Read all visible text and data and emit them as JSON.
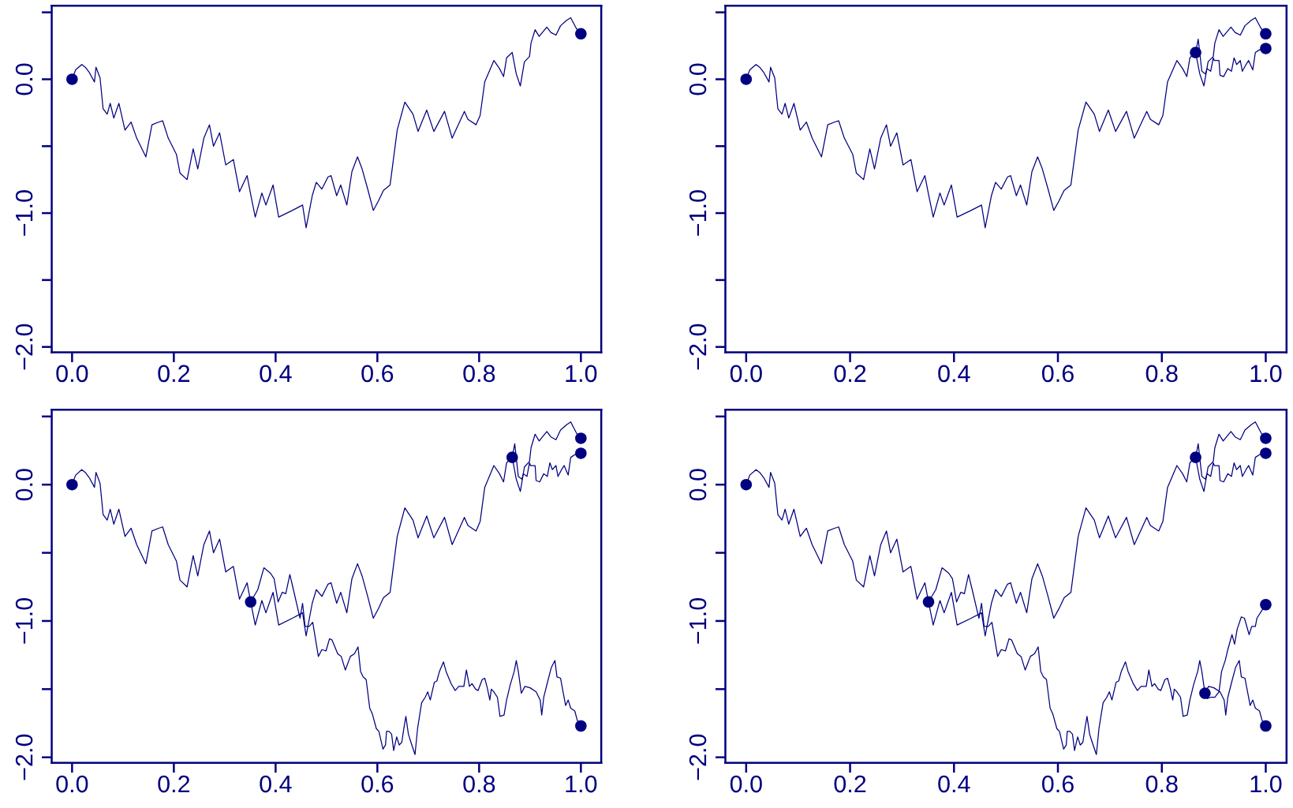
{
  "chart_data": [
    {
      "type": "line",
      "xlim": [
        -0.04,
        1.04
      ],
      "ylim": [
        -2.04,
        0.55
      ],
      "xticks": [
        {
          "value": 0.0,
          "label": "0.0"
        },
        {
          "value": 0.2,
          "label": "0.2"
        },
        {
          "value": 0.4,
          "label": "0.4"
        },
        {
          "value": 0.6,
          "label": "0.6"
        },
        {
          "value": 0.8,
          "label": "0.8"
        },
        {
          "value": 1.0,
          "label": "1.0"
        }
      ],
      "yticks": [
        {
          "value": -2.0,
          "label": "−2.0"
        },
        {
          "value": -1.5,
          "label": null
        },
        {
          "value": -1.0,
          "label": "−1.0"
        },
        {
          "value": -0.5,
          "label": null
        },
        {
          "value": 0.0,
          "label": "0.0"
        },
        {
          "value": 0.5,
          "label": null
        }
      ],
      "series": [
        {
          "type": "line",
          "color": "#000080",
          "x": [
            0,
            0.007,
            0.019,
            0.026,
            0.034,
            0.044,
            0.047,
            0.055,
            0.061,
            0.069,
            0.075,
            0.082,
            0.092,
            0.104,
            0.116,
            0.127,
            0.145,
            0.157,
            0.17,
            0.178,
            0.189,
            0.205,
            0.212,
            0.226,
            0.238,
            0.247,
            0.259,
            0.27,
            0.278,
            0.29,
            0.302,
            0.317,
            0.329,
            0.344,
            0.351,
            0.36,
            0.373,
            0.381,
            0.395,
            0.406,
            0.433,
            0.453,
            0.46,
            0.472,
            0.48,
            0.491,
            0.503,
            0.509,
            0.52,
            0.528,
            0.54,
            0.55,
            0.561,
            0.57,
            0.581,
            0.592,
            0.602,
            0.612,
            0.625,
            0.639,
            0.654,
            0.67,
            0.68,
            0.697,
            0.711,
            0.732,
            0.747,
            0.771,
            0.778,
            0.794,
            0.802,
            0.811,
            0.829,
            0.84,
            0.848,
            0.854,
            0.865,
            0.873,
            0.881,
            0.889,
            0.899,
            0.902,
            0.91,
            0.918,
            0.933,
            0.941,
            0.951,
            0.96,
            0.972,
            0.98,
            0.991,
            1.0
          ],
          "values": [
            0,
            0.07,
            0.11,
            0.09,
            0.05,
            -0.02,
            0.09,
            0.01,
            -0.22,
            -0.26,
            -0.18,
            -0.29,
            -0.18,
            -0.38,
            -0.32,
            -0.44,
            -0.58,
            -0.34,
            -0.32,
            -0.31,
            -0.44,
            -0.56,
            -0.7,
            -0.75,
            -0.52,
            -0.67,
            -0.44,
            -0.34,
            -0.5,
            -0.4,
            -0.64,
            -0.6,
            -0.84,
            -0.72,
            -0.86,
            -1.03,
            -0.85,
            -0.94,
            -0.79,
            -1.03,
            -0.98,
            -0.94,
            -1.11,
            -0.87,
            -0.77,
            -0.82,
            -0.73,
            -0.72,
            -0.87,
            -0.79,
            -0.94,
            -0.69,
            -0.58,
            -0.67,
            -0.82,
            -0.98,
            -0.91,
            -0.83,
            -0.79,
            -0.38,
            -0.17,
            -0.26,
            -0.39,
            -0.23,
            -0.39,
            -0.24,
            -0.44,
            -0.24,
            -0.3,
            -0.34,
            -0.27,
            -0.02,
            0.14,
            0.08,
            0.02,
            0.16,
            0.2,
            0.04,
            -0.05,
            0.13,
            0.17,
            0.27,
            0.37,
            0.32,
            0.39,
            0.35,
            0.33,
            0.4,
            0.44,
            0.46,
            0.38,
            0.34
          ]
        },
        {
          "type": "scatter",
          "color": "#000080",
          "marker": "circle",
          "x": [
            0,
            1.0
          ],
          "values": [
            0,
            0.34
          ]
        }
      ]
    },
    {
      "type": "line",
      "xlim": [
        -0.04,
        1.04
      ],
      "ylim": [
        -2.04,
        0.55
      ],
      "xticks": [
        {
          "value": 0.0,
          "label": "0.0"
        },
        {
          "value": 0.2,
          "label": "0.2"
        },
        {
          "value": 0.4,
          "label": "0.4"
        },
        {
          "value": 0.6,
          "label": "0.6"
        },
        {
          "value": 0.8,
          "label": "0.8"
        },
        {
          "value": 1.0,
          "label": "1.0"
        }
      ],
      "yticks": [
        {
          "value": -2.0,
          "label": "−2.0"
        },
        {
          "value": -1.5,
          "label": null
        },
        {
          "value": -1.0,
          "label": "−1.0"
        },
        {
          "value": -0.5,
          "label": null
        },
        {
          "value": 0.0,
          "label": "0.0"
        },
        {
          "value": 0.5,
          "label": null
        }
      ],
      "series": [
        {
          "type": "line",
          "color": "#000080",
          "x": [
            0,
            0.007,
            0.019,
            0.026,
            0.034,
            0.044,
            0.047,
            0.055,
            0.061,
            0.069,
            0.075,
            0.082,
            0.092,
            0.104,
            0.116,
            0.127,
            0.145,
            0.157,
            0.17,
            0.178,
            0.189,
            0.205,
            0.212,
            0.226,
            0.238,
            0.247,
            0.259,
            0.27,
            0.278,
            0.29,
            0.302,
            0.317,
            0.329,
            0.344,
            0.351,
            0.36,
            0.373,
            0.381,
            0.395,
            0.406,
            0.433,
            0.453,
            0.46,
            0.472,
            0.48,
            0.491,
            0.503,
            0.509,
            0.52,
            0.528,
            0.54,
            0.55,
            0.561,
            0.57,
            0.581,
            0.592,
            0.602,
            0.612,
            0.625,
            0.639,
            0.654,
            0.67,
            0.68,
            0.697,
            0.711,
            0.732,
            0.747,
            0.771,
            0.778,
            0.794,
            0.802,
            0.811,
            0.829,
            0.84,
            0.848,
            0.854,
            0.865,
            0.873,
            0.881,
            0.889,
            0.899,
            0.902,
            0.91,
            0.918,
            0.933,
            0.941,
            0.951,
            0.96,
            0.972,
            0.98,
            0.991,
            1.0
          ],
          "values": [
            0,
            0.07,
            0.11,
            0.09,
            0.05,
            -0.02,
            0.09,
            0.01,
            -0.22,
            -0.26,
            -0.18,
            -0.29,
            -0.18,
            -0.38,
            -0.32,
            -0.44,
            -0.58,
            -0.34,
            -0.32,
            -0.31,
            -0.44,
            -0.56,
            -0.7,
            -0.75,
            -0.52,
            -0.67,
            -0.44,
            -0.34,
            -0.5,
            -0.4,
            -0.64,
            -0.6,
            -0.84,
            -0.72,
            -0.86,
            -1.03,
            -0.85,
            -0.94,
            -0.79,
            -1.03,
            -0.98,
            -0.94,
            -1.11,
            -0.87,
            -0.77,
            -0.82,
            -0.73,
            -0.72,
            -0.87,
            -0.79,
            -0.94,
            -0.69,
            -0.58,
            -0.67,
            -0.82,
            -0.98,
            -0.91,
            -0.83,
            -0.79,
            -0.38,
            -0.17,
            -0.26,
            -0.39,
            -0.23,
            -0.39,
            -0.24,
            -0.44,
            -0.24,
            -0.3,
            -0.34,
            -0.27,
            -0.02,
            0.14,
            0.08,
            0.02,
            0.16,
            0.2,
            0.04,
            -0.05,
            0.13,
            0.17,
            0.27,
            0.37,
            0.32,
            0.39,
            0.35,
            0.33,
            0.4,
            0.44,
            0.46,
            0.38,
            0.34
          ]
        },
        {
          "type": "line",
          "color": "#000080",
          "x": [
            0.865,
            0.87,
            0.877,
            0.884,
            0.887,
            0.894,
            0.899,
            0.901,
            0.91,
            0.912,
            0.919,
            0.927,
            0.934,
            0.939,
            0.944,
            0.951,
            0.955,
            0.962,
            0.967,
            0.975,
            0.98,
            0.988,
            1.0
          ],
          "values": [
            0.2,
            0.3,
            0.06,
            0.04,
            0.08,
            0.06,
            0.16,
            0.14,
            0.14,
            0.03,
            0.02,
            0.08,
            0.06,
            0.16,
            0.11,
            0.14,
            0.06,
            0.11,
            0.14,
            0.07,
            0.2,
            0.22,
            0.23
          ]
        },
        {
          "type": "scatter",
          "color": "#000080",
          "marker": "circle",
          "x": [
            0,
            0.865,
            1.0,
            1.0
          ],
          "values": [
            0,
            0.2,
            0.34,
            0.23
          ]
        }
      ]
    },
    {
      "type": "line",
      "xlim": [
        -0.04,
        1.04
      ],
      "ylim": [
        -2.04,
        0.55
      ],
      "xticks": [
        {
          "value": 0.0,
          "label": "0.0"
        },
        {
          "value": 0.2,
          "label": "0.2"
        },
        {
          "value": 0.4,
          "label": "0.4"
        },
        {
          "value": 0.6,
          "label": "0.6"
        },
        {
          "value": 0.8,
          "label": "0.8"
        },
        {
          "value": 1.0,
          "label": "1.0"
        }
      ],
      "yticks": [
        {
          "value": -2.0,
          "label": "−2.0"
        },
        {
          "value": -1.5,
          "label": null
        },
        {
          "value": -1.0,
          "label": "−1.0"
        },
        {
          "value": -0.5,
          "label": null
        },
        {
          "value": 0.0,
          "label": "0.0"
        },
        {
          "value": 0.5,
          "label": null
        }
      ],
      "series": [
        {
          "type": "line",
          "color": "#000080",
          "x": [
            0,
            0.007,
            0.019,
            0.026,
            0.034,
            0.044,
            0.047,
            0.055,
            0.061,
            0.069,
            0.075,
            0.082,
            0.092,
            0.104,
            0.116,
            0.127,
            0.145,
            0.157,
            0.17,
            0.178,
            0.189,
            0.205,
            0.212,
            0.226,
            0.238,
            0.247,
            0.259,
            0.27,
            0.278,
            0.29,
            0.302,
            0.317,
            0.329,
            0.344,
            0.351,
            0.36,
            0.373,
            0.381,
            0.395,
            0.406,
            0.433,
            0.453,
            0.46,
            0.472,
            0.48,
            0.491,
            0.503,
            0.509,
            0.52,
            0.528,
            0.54,
            0.55,
            0.561,
            0.57,
            0.581,
            0.592,
            0.602,
            0.612,
            0.625,
            0.639,
            0.654,
            0.67,
            0.68,
            0.697,
            0.711,
            0.732,
            0.747,
            0.771,
            0.778,
            0.794,
            0.802,
            0.811,
            0.829,
            0.84,
            0.848,
            0.854,
            0.865,
            0.873,
            0.881,
            0.889,
            0.899,
            0.902,
            0.91,
            0.918,
            0.933,
            0.941,
            0.951,
            0.96,
            0.972,
            0.98,
            0.991,
            1.0
          ],
          "values": [
            0,
            0.07,
            0.11,
            0.09,
            0.05,
            -0.02,
            0.09,
            0.01,
            -0.22,
            -0.26,
            -0.18,
            -0.29,
            -0.18,
            -0.38,
            -0.32,
            -0.44,
            -0.58,
            -0.34,
            -0.32,
            -0.31,
            -0.44,
            -0.56,
            -0.7,
            -0.75,
            -0.52,
            -0.67,
            -0.44,
            -0.34,
            -0.5,
            -0.4,
            -0.64,
            -0.6,
            -0.84,
            -0.72,
            -0.86,
            -1.03,
            -0.85,
            -0.94,
            -0.79,
            -1.03,
            -0.98,
            -0.94,
            -1.11,
            -0.87,
            -0.77,
            -0.82,
            -0.73,
            -0.72,
            -0.87,
            -0.79,
            -0.94,
            -0.69,
            -0.58,
            -0.67,
            -0.82,
            -0.98,
            -0.91,
            -0.83,
            -0.79,
            -0.38,
            -0.17,
            -0.26,
            -0.39,
            -0.23,
            -0.39,
            -0.24,
            -0.44,
            -0.24,
            -0.3,
            -0.34,
            -0.27,
            -0.02,
            0.14,
            0.08,
            0.02,
            0.16,
            0.2,
            0.04,
            -0.05,
            0.13,
            0.17,
            0.27,
            0.37,
            0.32,
            0.39,
            0.35,
            0.33,
            0.4,
            0.44,
            0.46,
            0.38,
            0.34
          ]
        },
        {
          "type": "line",
          "color": "#000080",
          "x": [
            0.865,
            0.87,
            0.877,
            0.884,
            0.887,
            0.894,
            0.899,
            0.901,
            0.91,
            0.912,
            0.919,
            0.927,
            0.934,
            0.939,
            0.944,
            0.951,
            0.955,
            0.962,
            0.967,
            0.975,
            0.98,
            0.988,
            1.0
          ],
          "values": [
            0.2,
            0.3,
            0.06,
            0.04,
            0.08,
            0.06,
            0.16,
            0.14,
            0.14,
            0.03,
            0.02,
            0.08,
            0.06,
            0.16,
            0.11,
            0.14,
            0.06,
            0.11,
            0.14,
            0.07,
            0.2,
            0.22,
            0.23
          ]
        },
        {
          "type": "line",
          "color": "#000080",
          "x": [
            0.351,
            0.365,
            0.377,
            0.39,
            0.397,
            0.405,
            0.413,
            0.42,
            0.428,
            0.435,
            0.443,
            0.448,
            0.453,
            0.458,
            0.466,
            0.473,
            0.484,
            0.491,
            0.499,
            0.506,
            0.511,
            0.522,
            0.529,
            0.537,
            0.547,
            0.555,
            0.562,
            0.567,
            0.572,
            0.578,
            0.585,
            0.59,
            0.598,
            0.603,
            0.611,
            0.616,
            0.618,
            0.623,
            0.628,
            0.632,
            0.638,
            0.643,
            0.648,
            0.652,
            0.656,
            0.661,
            0.666,
            0.674,
            0.679,
            0.687,
            0.694,
            0.699,
            0.704,
            0.712,
            0.717,
            0.722,
            0.73,
            0.735,
            0.745,
            0.753,
            0.76,
            0.77,
            0.775,
            0.781,
            0.786,
            0.793,
            0.798,
            0.806,
            0.811,
            0.816,
            0.821,
            0.824,
            0.829,
            0.836,
            0.841,
            0.849,
            0.854,
            0.861,
            0.869,
            0.873,
            0.877,
            0.883,
            0.89,
            0.9,
            0.912,
            0.92,
            0.923,
            0.927,
            0.935,
            0.942,
            0.949,
            0.953,
            0.96,
            0.965,
            0.97,
            0.975,
            0.98,
            0.988,
            0.993,
            1.0
          ],
          "values": [
            -0.86,
            -0.77,
            -0.61,
            -0.65,
            -0.69,
            -0.86,
            -0.79,
            -0.8,
            -0.66,
            -0.77,
            -0.9,
            -0.98,
            -0.87,
            -1.04,
            -1.04,
            -1.01,
            -1.26,
            -1.21,
            -1.22,
            -1.13,
            -1.14,
            -1.24,
            -1.26,
            -1.36,
            -1.26,
            -1.24,
            -1.19,
            -1.37,
            -1.41,
            -1.43,
            -1.64,
            -1.68,
            -1.79,
            -1.81,
            -1.94,
            -1.91,
            -1.81,
            -1.81,
            -1.83,
            -1.95,
            -1.85,
            -1.91,
            -1.89,
            -1.79,
            -1.7,
            -1.83,
            -1.89,
            -1.98,
            -1.79,
            -1.6,
            -1.56,
            -1.52,
            -1.58,
            -1.45,
            -1.44,
            -1.37,
            -1.3,
            -1.37,
            -1.46,
            -1.51,
            -1.48,
            -1.48,
            -1.36,
            -1.48,
            -1.46,
            -1.5,
            -1.51,
            -1.43,
            -1.42,
            -1.49,
            -1.58,
            -1.5,
            -1.52,
            -1.56,
            -1.7,
            -1.69,
            -1.58,
            -1.47,
            -1.37,
            -1.29,
            -1.37,
            -1.53,
            -1.48,
            -1.49,
            -1.52,
            -1.58,
            -1.69,
            -1.56,
            -1.44,
            -1.34,
            -1.29,
            -1.41,
            -1.42,
            -1.52,
            -1.62,
            -1.58,
            -1.64,
            -1.66,
            -1.73,
            -1.77
          ]
        },
        {
          "type": "scatter",
          "color": "#000080",
          "marker": "circle",
          "x": [
            0,
            0.865,
            1.0,
            1.0,
            0.351,
            1.0
          ],
          "values": [
            0,
            0.2,
            0.34,
            0.23,
            -0.86,
            -1.77
          ]
        }
      ]
    },
    {
      "type": "line",
      "xlim": [
        -0.04,
        1.04
      ],
      "ylim": [
        -2.04,
        0.55
      ],
      "xticks": [
        {
          "value": 0.0,
          "label": "0.0"
        },
        {
          "value": 0.2,
          "label": "0.2"
        },
        {
          "value": 0.4,
          "label": "0.4"
        },
        {
          "value": 0.6,
          "label": "0.6"
        },
        {
          "value": 0.8,
          "label": "0.8"
        },
        {
          "value": 1.0,
          "label": "1.0"
        }
      ],
      "yticks": [
        {
          "value": -2.0,
          "label": "−2.0"
        },
        {
          "value": -1.5,
          "label": null
        },
        {
          "value": -1.0,
          "label": "−1.0"
        },
        {
          "value": -0.5,
          "label": null
        },
        {
          "value": 0.0,
          "label": "0.0"
        },
        {
          "value": 0.5,
          "label": null
        }
      ],
      "series": [
        {
          "type": "line",
          "color": "#000080",
          "x": [
            0,
            0.007,
            0.019,
            0.026,
            0.034,
            0.044,
            0.047,
            0.055,
            0.061,
            0.069,
            0.075,
            0.082,
            0.092,
            0.104,
            0.116,
            0.127,
            0.145,
            0.157,
            0.17,
            0.178,
            0.189,
            0.205,
            0.212,
            0.226,
            0.238,
            0.247,
            0.259,
            0.27,
            0.278,
            0.29,
            0.302,
            0.317,
            0.329,
            0.344,
            0.351,
            0.36,
            0.373,
            0.381,
            0.395,
            0.406,
            0.433,
            0.453,
            0.46,
            0.472,
            0.48,
            0.491,
            0.503,
            0.509,
            0.52,
            0.528,
            0.54,
            0.55,
            0.561,
            0.57,
            0.581,
            0.592,
            0.602,
            0.612,
            0.625,
            0.639,
            0.654,
            0.67,
            0.68,
            0.697,
            0.711,
            0.732,
            0.747,
            0.771,
            0.778,
            0.794,
            0.802,
            0.811,
            0.829,
            0.84,
            0.848,
            0.854,
            0.865,
            0.873,
            0.881,
            0.889,
            0.899,
            0.902,
            0.91,
            0.918,
            0.933,
            0.941,
            0.951,
            0.96,
            0.972,
            0.98,
            0.991,
            1.0
          ],
          "values": [
            0,
            0.07,
            0.11,
            0.09,
            0.05,
            -0.02,
            0.09,
            0.01,
            -0.22,
            -0.26,
            -0.18,
            -0.29,
            -0.18,
            -0.38,
            -0.32,
            -0.44,
            -0.58,
            -0.34,
            -0.32,
            -0.31,
            -0.44,
            -0.56,
            -0.7,
            -0.75,
            -0.52,
            -0.67,
            -0.44,
            -0.34,
            -0.5,
            -0.4,
            -0.64,
            -0.6,
            -0.84,
            -0.72,
            -0.86,
            -1.03,
            -0.85,
            -0.94,
            -0.79,
            -1.03,
            -0.98,
            -0.94,
            -1.11,
            -0.87,
            -0.77,
            -0.82,
            -0.73,
            -0.72,
            -0.87,
            -0.79,
            -0.94,
            -0.69,
            -0.58,
            -0.67,
            -0.82,
            -0.98,
            -0.91,
            -0.83,
            -0.79,
            -0.38,
            -0.17,
            -0.26,
            -0.39,
            -0.23,
            -0.39,
            -0.24,
            -0.44,
            -0.24,
            -0.3,
            -0.34,
            -0.27,
            -0.02,
            0.14,
            0.08,
            0.02,
            0.16,
            0.2,
            0.04,
            -0.05,
            0.13,
            0.17,
            0.27,
            0.37,
            0.32,
            0.39,
            0.35,
            0.33,
            0.4,
            0.44,
            0.46,
            0.38,
            0.34
          ]
        },
        {
          "type": "line",
          "color": "#000080",
          "x": [
            0.865,
            0.87,
            0.877,
            0.884,
            0.887,
            0.894,
            0.899,
            0.901,
            0.91,
            0.912,
            0.919,
            0.927,
            0.934,
            0.939,
            0.944,
            0.951,
            0.955,
            0.962,
            0.967,
            0.975,
            0.98,
            0.988,
            1.0
          ],
          "values": [
            0.2,
            0.3,
            0.06,
            0.04,
            0.08,
            0.06,
            0.16,
            0.14,
            0.14,
            0.03,
            0.02,
            0.08,
            0.06,
            0.16,
            0.11,
            0.14,
            0.06,
            0.11,
            0.14,
            0.07,
            0.2,
            0.22,
            0.23
          ]
        },
        {
          "type": "line",
          "color": "#000080",
          "x": [
            0.351,
            0.365,
            0.377,
            0.39,
            0.397,
            0.405,
            0.413,
            0.42,
            0.428,
            0.435,
            0.443,
            0.448,
            0.453,
            0.458,
            0.466,
            0.473,
            0.484,
            0.491,
            0.499,
            0.506,
            0.511,
            0.522,
            0.529,
            0.537,
            0.547,
            0.555,
            0.562,
            0.567,
            0.572,
            0.578,
            0.585,
            0.59,
            0.598,
            0.603,
            0.611,
            0.616,
            0.618,
            0.623,
            0.628,
            0.632,
            0.638,
            0.643,
            0.648,
            0.652,
            0.656,
            0.661,
            0.666,
            0.674,
            0.679,
            0.687,
            0.694,
            0.699,
            0.704,
            0.712,
            0.717,
            0.722,
            0.73,
            0.735,
            0.745,
            0.753,
            0.76,
            0.77,
            0.775,
            0.781,
            0.786,
            0.793,
            0.798,
            0.806,
            0.811,
            0.816,
            0.821,
            0.824,
            0.829,
            0.836,
            0.841,
            0.849,
            0.854,
            0.861,
            0.869,
            0.873,
            0.877,
            0.883,
            0.89,
            0.9,
            0.912,
            0.92,
            0.923,
            0.927,
            0.935,
            0.942,
            0.949,
            0.953,
            0.96,
            0.965,
            0.97,
            0.975,
            0.98,
            0.988,
            0.993,
            1.0
          ],
          "values": [
            -0.86,
            -0.77,
            -0.61,
            -0.65,
            -0.69,
            -0.86,
            -0.79,
            -0.8,
            -0.66,
            -0.77,
            -0.9,
            -0.98,
            -0.87,
            -1.04,
            -1.04,
            -1.01,
            -1.26,
            -1.21,
            -1.22,
            -1.13,
            -1.14,
            -1.24,
            -1.26,
            -1.36,
            -1.26,
            -1.24,
            -1.19,
            -1.37,
            -1.41,
            -1.43,
            -1.64,
            -1.68,
            -1.79,
            -1.81,
            -1.94,
            -1.91,
            -1.81,
            -1.81,
            -1.83,
            -1.95,
            -1.85,
            -1.91,
            -1.89,
            -1.79,
            -1.7,
            -1.83,
            -1.89,
            -1.98,
            -1.79,
            -1.6,
            -1.56,
            -1.52,
            -1.58,
            -1.45,
            -1.44,
            -1.37,
            -1.3,
            -1.37,
            -1.46,
            -1.51,
            -1.48,
            -1.48,
            -1.36,
            -1.48,
            -1.46,
            -1.5,
            -1.51,
            -1.43,
            -1.42,
            -1.49,
            -1.58,
            -1.5,
            -1.52,
            -1.56,
            -1.7,
            -1.69,
            -1.58,
            -1.47,
            -1.37,
            -1.29,
            -1.37,
            -1.53,
            -1.48,
            -1.49,
            -1.52,
            -1.58,
            -1.69,
            -1.56,
            -1.44,
            -1.34,
            -1.29,
            -1.41,
            -1.42,
            -1.52,
            -1.62,
            -1.58,
            -1.64,
            -1.66,
            -1.73,
            -1.77
          ]
        },
        {
          "type": "line",
          "color": "#000080",
          "x": [
            0.883,
            0.887,
            0.894,
            0.902,
            0.91,
            0.915,
            0.922,
            0.927,
            0.935,
            0.94,
            0.945,
            0.953,
            0.959,
            0.968,
            0.973,
            0.98,
            0.983,
            0.993,
            1.0
          ],
          "values": [
            -1.53,
            -1.57,
            -1.56,
            -1.56,
            -1.52,
            -1.37,
            -1.29,
            -1.21,
            -1.1,
            -1.17,
            -1.06,
            -0.97,
            -0.98,
            -1.1,
            -1.04,
            -1.04,
            -0.98,
            -0.92,
            -0.88
          ]
        },
        {
          "type": "scatter",
          "color": "#000080",
          "marker": "circle",
          "x": [
            0,
            0.865,
            1.0,
            1.0,
            0.351,
            1.0,
            0.883,
            1.0
          ],
          "values": [
            0,
            0.2,
            0.34,
            0.23,
            -0.86,
            -1.77,
            -1.53,
            -0.88
          ]
        }
      ]
    }
  ]
}
